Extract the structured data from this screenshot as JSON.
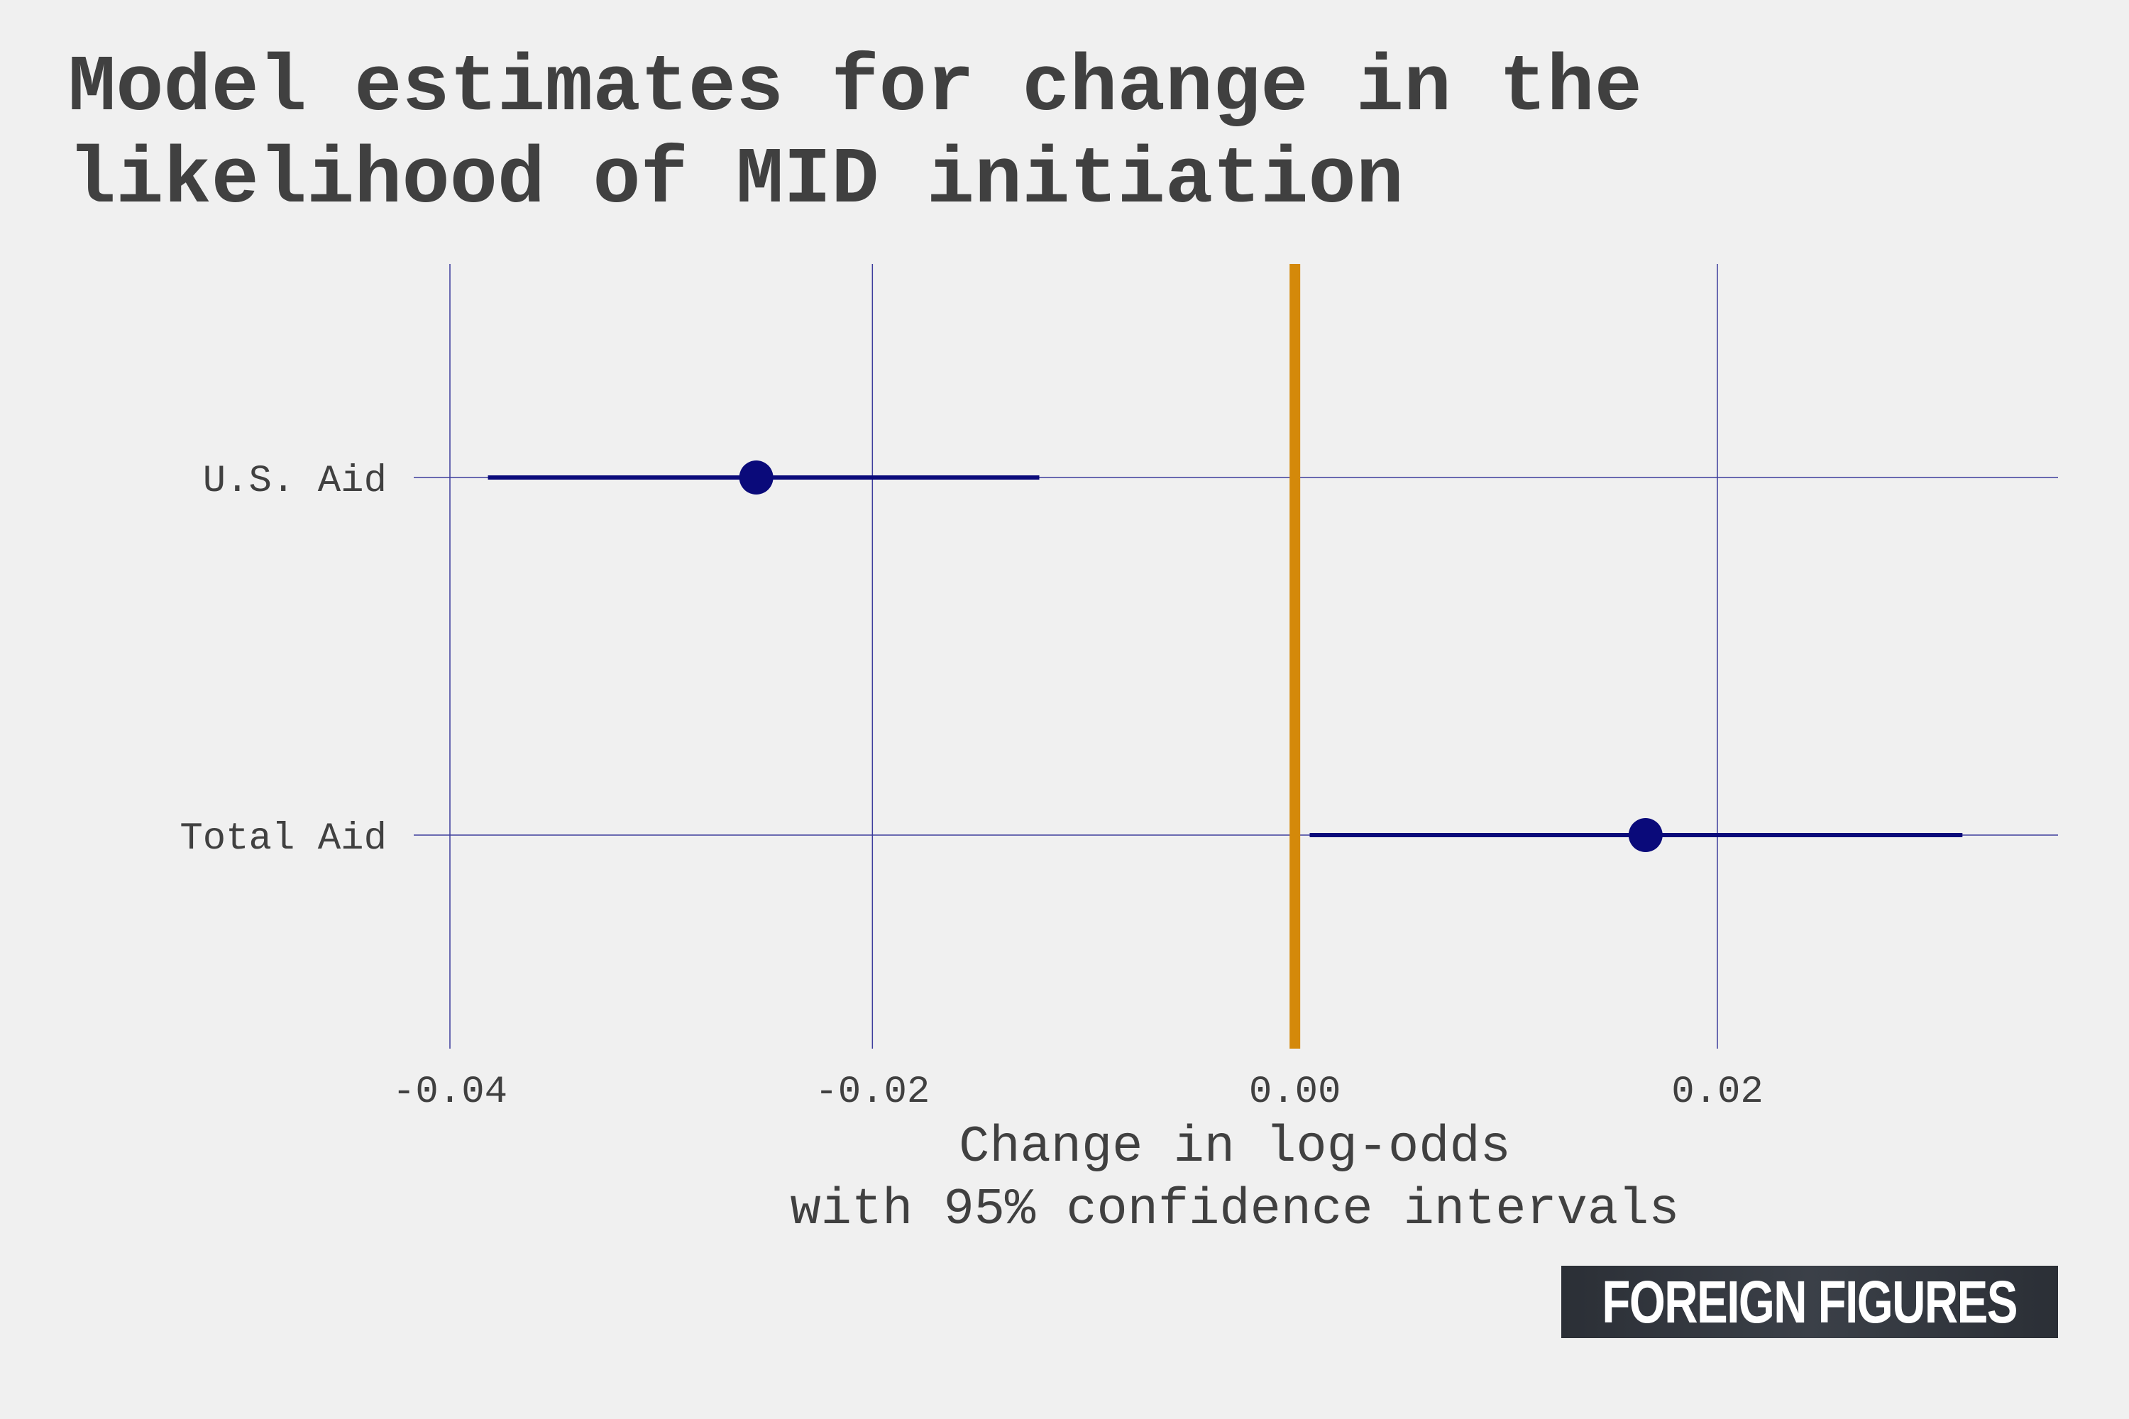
{
  "title_lines": [
    "Model estimates for change in the",
    "likelihood of MID initiation"
  ],
  "xlabel_lines": [
    "Change in log-odds",
    "with 95% confidence intervals"
  ],
  "logo_text": "FOREIGN FIGURES",
  "colors": {
    "background": "#f0f0f0",
    "grid": "#3d3d9c",
    "estimate": "#0a0a7a",
    "zero_line": "#d4890a",
    "text": "#404040"
  },
  "chart_data": {
    "type": "scatter",
    "subtype": "coefficient-plot",
    "categories": [
      "U.S. Aid",
      "Total Aid"
    ],
    "estimates": [
      -0.0255,
      0.0166
    ],
    "ci_low": [
      -0.0382,
      0.0007
    ],
    "ci_high": [
      -0.0121,
      0.0316
    ],
    "xticks": [
      -0.04,
      -0.02,
      0.0,
      0.02
    ],
    "xtick_labels": [
      "-0.04",
      "-0.02",
      "0.00",
      "0.02"
    ],
    "reference_line": 0,
    "xlim": [
      -0.0418,
      0.0362
    ],
    "grid": true,
    "legend": "none"
  }
}
